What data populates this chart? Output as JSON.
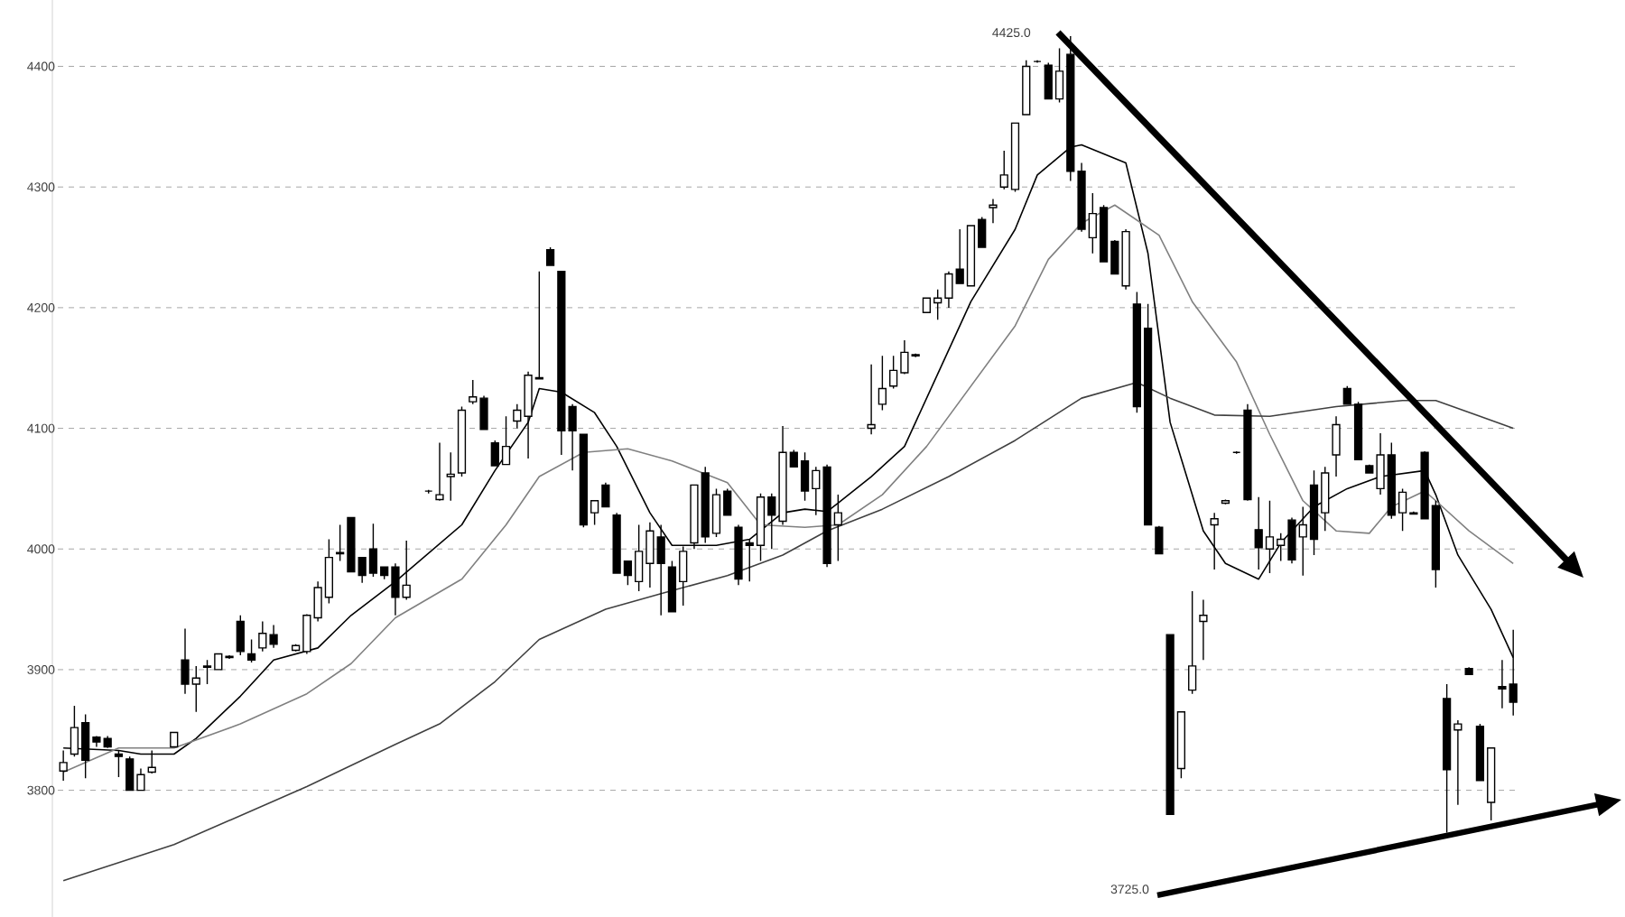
{
  "chart_data": {
    "type": "candlestick",
    "categories": [
      null,
      null,
      null,
      null,
      null,
      null,
      null,
      null,
      null,
      null,
      null,
      null,
      null,
      null,
      null,
      null,
      null,
      null,
      null,
      null,
      null,
      null,
      null,
      null,
      null,
      null,
      null,
      null,
      null,
      null,
      null,
      null,
      null,
      null,
      null,
      null,
      null,
      null,
      null,
      null,
      null,
      null,
      null,
      null,
      null,
      null,
      null,
      null,
      null,
      null,
      null,
      null,
      null,
      null,
      null,
      null,
      null,
      null,
      null,
      null,
      null,
      null,
      null,
      null,
      null,
      null,
      null,
      null,
      null,
      null,
      null,
      null,
      null,
      null,
      null,
      null,
      null,
      null,
      null,
      null,
      null,
      null,
      null,
      null,
      null,
      null,
      null,
      null,
      null,
      null,
      null,
      null,
      null,
      null,
      null,
      null,
      null,
      null,
      null,
      null,
      null,
      null,
      null,
      null,
      null,
      null,
      null,
      null,
      null,
      null,
      null,
      null,
      null,
      null,
      null,
      null,
      null,
      null,
      null,
      null,
      null,
      null,
      null,
      null,
      null,
      null,
      null,
      null,
      null,
      null,
      null,
      null
    ],
    "ohlc": [
      [
        3816,
        3833,
        3808,
        3823
      ],
      [
        3830,
        3870,
        3828,
        3852
      ],
      [
        3856,
        3863,
        3810,
        3825
      ],
      [
        3844,
        3845,
        3836,
        3840
      ],
      [
        3843,
        3845,
        3835,
        3836
      ],
      [
        3830,
        3833,
        3811,
        3828
      ],
      [
        3826,
        3828,
        3800,
        3800
      ],
      [
        3800,
        3818,
        3800,
        3813
      ],
      [
        3815,
        3833,
        3814,
        3819
      ],
      null,
      [
        3836,
        3848,
        3836,
        3848
      ],
      [
        3908,
        3934,
        3880,
        3888
      ],
      [
        3888,
        3903,
        3865,
        3893
      ],
      [
        3902,
        3908,
        3888,
        3903
      ],
      [
        3900,
        3913,
        3900,
        3913
      ],
      [
        3911,
        3912,
        3909,
        3910
      ],
      [
        3940,
        3945,
        3912,
        3915
      ],
      [
        3913,
        3925,
        3906,
        3908
      ],
      [
        3918,
        3940,
        3915,
        3930
      ],
      [
        3929,
        3937,
        3918,
        3921
      ],
      null,
      [
        3916,
        3921,
        3915,
        3920
      ],
      [
        3915,
        3946,
        3913,
        3945
      ],
      [
        3943,
        3973,
        3940,
        3968
      ],
      [
        3960,
        4008,
        3955,
        3993
      ],
      [
        3996,
        4020,
        3990,
        3997
      ],
      [
        4026,
        4026,
        3981,
        3981
      ],
      [
        3993,
        3993,
        3972,
        3978
      ],
      [
        4000,
        4021,
        3977,
        3980
      ],
      [
        3985,
        3985,
        3975,
        3978
      ],
      [
        3985,
        3988,
        3945,
        3960
      ],
      [
        3960,
        4007,
        3958,
        3970
      ],
      null,
      [
        4048,
        4049,
        4046,
        4048
      ],
      [
        4041,
        4088,
        4040,
        4045
      ],
      [
        4060,
        4080,
        4040,
        4062
      ],
      [
        4063,
        4118,
        4060,
        4115
      ],
      [
        4122,
        4140,
        4120,
        4126
      ],
      [
        4125,
        4127,
        4099,
        4099
      ],
      [
        4088,
        4090,
        4069,
        4069
      ],
      [
        4070,
        4110,
        4070,
        4085
      ],
      [
        4106,
        4120,
        4100,
        4115
      ],
      [
        4110,
        4147,
        4075,
        4144
      ],
      [
        4141,
        4230,
        4141,
        4142
      ],
      [
        4248,
        4250,
        4235,
        4235
      ],
      [
        4230,
        4230,
        4078,
        4098
      ],
      [
        4118,
        4120,
        4065,
        4098
      ],
      [
        4095,
        4095,
        4018,
        4020
      ],
      [
        4030,
        4040,
        4020,
        4040
      ],
      [
        4053,
        4055,
        4035,
        4035
      ],
      [
        4028,
        4030,
        3980,
        3980
      ],
      [
        3990,
        3990,
        3970,
        3978
      ],
      [
        3973,
        4020,
        3965,
        3998
      ],
      [
        3988,
        4022,
        3968,
        4015
      ],
      [
        4010,
        4020,
        3945,
        3988
      ],
      [
        3985,
        3990,
        3948,
        3948
      ],
      [
        3973,
        4002,
        3953,
        3998
      ],
      [
        4005,
        4053,
        4000,
        4053
      ],
      [
        4063,
        4068,
        4005,
        4010
      ],
      [
        4013,
        4050,
        4010,
        4045
      ],
      [
        4048,
        4050,
        4028,
        4028
      ],
      [
        4018,
        4020,
        3970,
        3975
      ],
      [
        4005,
        4008,
        3973,
        4003
      ],
      [
        4003,
        4046,
        3990,
        4043
      ],
      [
        4043,
        4046,
        4000,
        4028
      ],
      [
        4023,
        4102,
        4020,
        4080
      ],
      [
        4080,
        4082,
        4068,
        4068
      ],
      [
        4073,
        4080,
        4040,
        4048
      ],
      [
        4050,
        4068,
        4028,
        4065
      ],
      [
        4068,
        4070,
        3985,
        3988
      ],
      [
        4020,
        4045,
        3990,
        4030
      ],
      null,
      null,
      [
        4100,
        4153,
        4095,
        4103
      ],
      [
        4120,
        4160,
        4115,
        4133
      ],
      [
        4135,
        4160,
        4133,
        4148
      ],
      [
        4146,
        4173,
        4145,
        4163
      ],
      [
        4160,
        4162,
        4159,
        4161
      ],
      [
        4196,
        4208,
        4196,
        4208
      ],
      [
        4204,
        4215,
        4190,
        4208
      ],
      [
        4208,
        4230,
        4200,
        4228
      ],
      [
        4232,
        4265,
        4220,
        4220
      ],
      [
        4218,
        4268,
        4218,
        4268
      ],
      [
        4273,
        4275,
        4250,
        4250
      ],
      [
        4283,
        4290,
        4270,
        4285
      ],
      [
        4300,
        4330,
        4298,
        4310
      ],
      [
        4298,
        4353,
        4296,
        4353
      ],
      [
        4360,
        4405,
        4360,
        4400
      ],
      [
        4404,
        4405,
        4403,
        4404
      ],
      [
        4401,
        4403,
        4373,
        4373
      ],
      [
        4373,
        4415,
        4370,
        4396
      ],
      [
        4410,
        4425,
        4305,
        4313
      ],
      [
        4313,
        4320,
        4263,
        4265
      ],
      [
        4258,
        4295,
        4245,
        4278
      ],
      [
        4283,
        4285,
        4238,
        4238
      ],
      [
        4255,
        4256,
        4228,
        4228
      ],
      [
        4218,
        4265,
        4215,
        4263
      ],
      [
        4203,
        4213,
        4113,
        4118
      ],
      [
        4183,
        4203,
        4020,
        4020
      ],
      [
        4018,
        4019,
        3996,
        3996
      ],
      [
        3929,
        3929,
        3780,
        3780
      ],
      [
        3818,
        3865,
        3810,
        3865
      ],
      [
        3883,
        3965,
        3880,
        3903
      ],
      [
        3940,
        3958,
        3908,
        3945
      ],
      [
        4020,
        4030,
        3983,
        4025
      ],
      [
        4038,
        4041,
        4037,
        4040
      ],
      [
        4080,
        4081,
        4079,
        4080
      ],
      [
        4115,
        4120,
        4040,
        4041
      ],
      [
        4016,
        4043,
        3983,
        4001
      ],
      [
        4000,
        4040,
        3980,
        4010
      ],
      [
        4003,
        4013,
        3990,
        4008
      ],
      [
        4024,
        4026,
        3988,
        3991
      ],
      [
        4010,
        4035,
        3978,
        4020
      ],
      [
        4053,
        4065,
        3995,
        4008
      ],
      [
        4030,
        4068,
        4015,
        4063
      ],
      [
        4078,
        4110,
        4060,
        4103
      ],
      [
        4133,
        4135,
        4120,
        4120
      ],
      [
        4120,
        4122,
        4074,
        4074
      ],
      [
        4069,
        4070,
        4063,
        4063
      ],
      [
        4050,
        4096,
        4045,
        4078
      ],
      [
        4078,
        4088,
        4025,
        4028
      ],
      [
        4030,
        4050,
        4015,
        4047
      ],
      [
        4030,
        4031,
        4029,
        4029
      ],
      [
        4080,
        4081,
        4025,
        4025
      ],
      [
        4036,
        4040,
        3968,
        3983
      ],
      [
        3876,
        3888,
        3765,
        3817
      ],
      [
        3850,
        3858,
        3788,
        3855
      ],
      [
        3901,
        3902,
        3896,
        3896
      ],
      [
        3853,
        3855,
        3808,
        3808
      ],
      [
        3790,
        3835,
        3775,
        3835
      ],
      [
        3886,
        3908,
        3868,
        3884
      ],
      [
        3888,
        3933,
        3862,
        3873
      ]
    ],
    "series": [
      {
        "type": "line",
        "color": "#000000",
        "values": [
          3835,
          null,
          null,
          null,
          null,
          3833,
          null,
          3830,
          null,
          null,
          3830,
          null,
          3843,
          null,
          null,
          null,
          3878,
          null,
          null,
          3908,
          null,
          null,
          null,
          3918,
          null,
          null,
          3945,
          null,
          null,
          null,
          3973,
          null,
          null,
          null,
          null,
          null,
          4020,
          null,
          null,
          4065,
          null,
          null,
          4105,
          4133,
          null,
          4130,
          null,
          null,
          4113,
          null,
          4085,
          null,
          null,
          4030,
          null,
          4003,
          null,
          null,
          null,
          4003,
          null,
          null,
          4008,
          null,
          null,
          4030,
          null,
          4033,
          null,
          4031,
          4038,
          null,
          null,
          4060,
          null,
          null,
          4085,
          null,
          null,
          4145,
          null,
          null,
          4205,
          null,
          null,
          null,
          4265,
          null,
          4310,
          null,
          null,
          4333,
          4335,
          null,
          null,
          null,
          4320,
          null,
          4245,
          null,
          4105,
          null,
          null,
          4015,
          null,
          3988,
          null,
          null,
          3975,
          null,
          4005,
          null,
          null,
          4035,
          null,
          null,
          4050,
          null,
          null,
          4060,
          null,
          null,
          null,
          4065,
          4045,
          null,
          3995,
          null,
          null,
          3950,
          null,
          3910
        ]
      },
      {
        "type": "line",
        "color": "#808080",
        "values": [
          3815,
          null,
          null,
          null,
          null,
          3835,
          null,
          null,
          null,
          null,
          3835,
          null,
          null,
          null,
          null,
          null,
          3855,
          null,
          null,
          null,
          null,
          null,
          3880,
          null,
          null,
          null,
          3905,
          null,
          null,
          null,
          3943,
          null,
          null,
          null,
          null,
          null,
          3975,
          null,
          null,
          null,
          4020,
          null,
          null,
          4060,
          null,
          null,
          null,
          4080,
          null,
          null,
          null,
          4083,
          null,
          null,
          null,
          4073,
          null,
          null,
          null,
          null,
          4055,
          null,
          null,
          4020,
          null,
          null,
          null,
          4018,
          null,
          null,
          4020,
          null,
          null,
          null,
          4045,
          null,
          null,
          null,
          4085,
          null,
          null,
          null,
          4135,
          null,
          null,
          null,
          4185,
          null,
          null,
          4240,
          null,
          null,
          4270,
          null,
          null,
          4285,
          null,
          null,
          null,
          4260,
          null,
          null,
          4205,
          null,
          null,
          null,
          4155,
          null,
          null,
          4095,
          null,
          null,
          4040,
          null,
          null,
          4015,
          null,
          null,
          4013,
          null,
          4035,
          null,
          null,
          4048,
          4040,
          null,
          null,
          4015,
          null,
          null,
          null,
          3988
        ]
      },
      {
        "type": "line",
        "color": "#404040",
        "values": [
          3725,
          null,
          null,
          null,
          null,
          null,
          null,
          null,
          null,
          null,
          3755,
          null,
          null,
          null,
          null,
          null,
          null,
          null,
          null,
          null,
          null,
          null,
          3803,
          null,
          null,
          null,
          null,
          null,
          null,
          null,
          3838,
          null,
          null,
          null,
          3855,
          null,
          null,
          null,
          null,
          3890,
          null,
          null,
          null,
          3925,
          null,
          null,
          null,
          null,
          null,
          3950,
          null,
          null,
          null,
          null,
          3963,
          null,
          null,
          null,
          null,
          null,
          3978,
          null,
          null,
          null,
          null,
          3995,
          null,
          null,
          null,
          4015,
          null,
          null,
          null,
          null,
          4033,
          null,
          null,
          null,
          null,
          null,
          4060,
          null,
          null,
          null,
          null,
          null,
          4090,
          null,
          null,
          null,
          null,
          null,
          4125,
          null,
          null,
          null,
          null,
          4138,
          null,
          null,
          4125,
          null,
          null,
          null,
          4111,
          null,
          null,
          null,
          null,
          4110,
          null,
          null,
          null,
          null,
          null,
          4118,
          null,
          null,
          null,
          null,
          null,
          4123,
          null,
          null,
          4123,
          null,
          null,
          null,
          4110,
          null,
          null,
          4100
        ]
      }
    ],
    "ylim": [
      3695,
      4455
    ],
    "yticks": [
      3800,
      3900,
      4000,
      4100,
      4200,
      4300,
      4400
    ],
    "grid": "y",
    "tick_labels": "y",
    "annotations": [
      "4425.0",
      "3725.0"
    ]
  }
}
